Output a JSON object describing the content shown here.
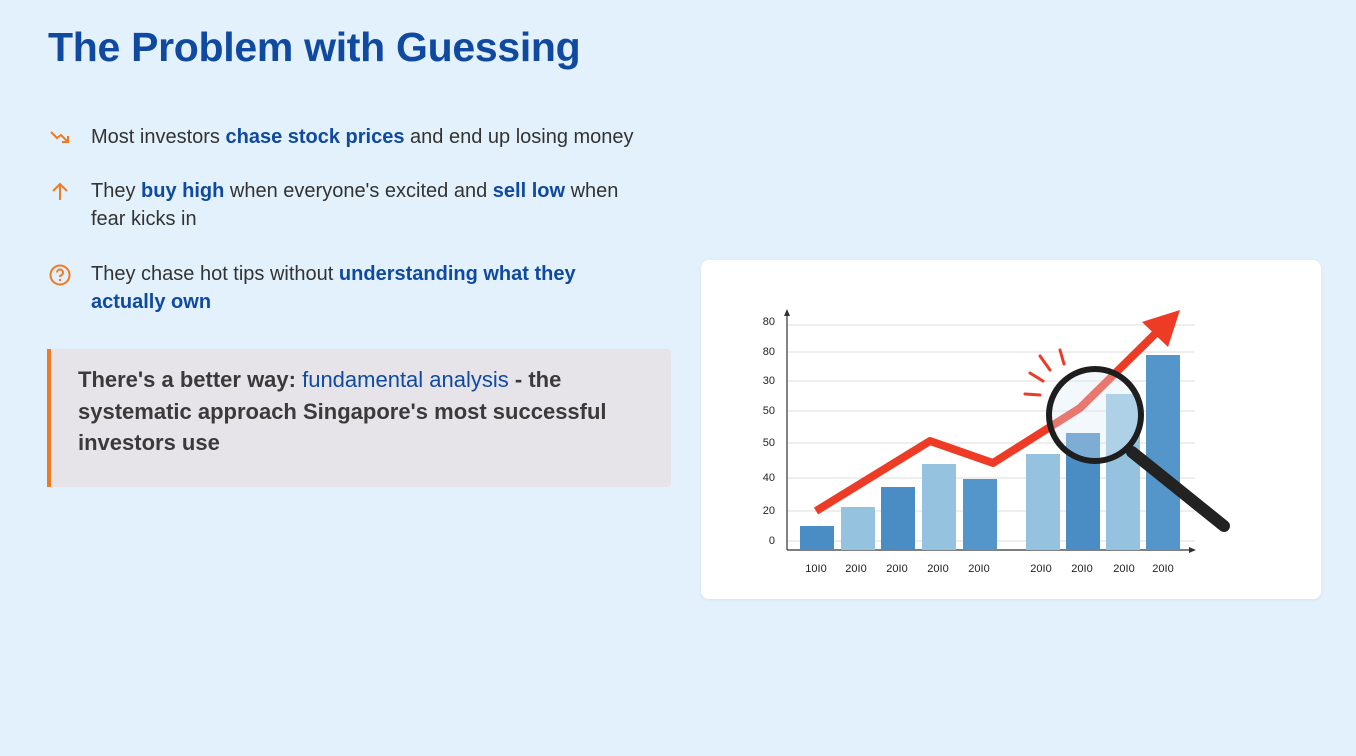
{
  "title": "The Problem with Guessing",
  "bullets": [
    {
      "icon": "trend-down",
      "parts": [
        {
          "text": "Most investors "
        },
        {
          "text": "chase stock prices",
          "em": true
        },
        {
          "text": " and end up losing money"
        }
      ]
    },
    {
      "icon": "arrow-up",
      "parts": [
        {
          "text": "They "
        },
        {
          "text": "buy high",
          "em": true
        },
        {
          "text": " when everyone's excited and "
        },
        {
          "text": "sell low",
          "em": true
        },
        {
          "text": " when fear kicks in"
        }
      ]
    },
    {
      "icon": "question",
      "parts": [
        {
          "text": "They chase hot tips without "
        },
        {
          "text": "understanding what they actually own",
          "em": true
        }
      ]
    }
  ],
  "callout": {
    "parts": [
      {
        "text": "There's a better way: "
      },
      {
        "text": "fundamental analysis",
        "em": true
      },
      {
        "text": " - the systematic approach Singapore's most successful investors use"
      }
    ]
  },
  "illustration": {
    "y_labels": [
      "80",
      "80",
      "30",
      "50",
      "50",
      "40",
      "20",
      "0"
    ],
    "x_labels": [
      "10I0",
      "20I0",
      "20I0",
      "20I0",
      "20I0",
      "20I0",
      "20I0",
      "20I0",
      "20I0"
    ]
  }
}
